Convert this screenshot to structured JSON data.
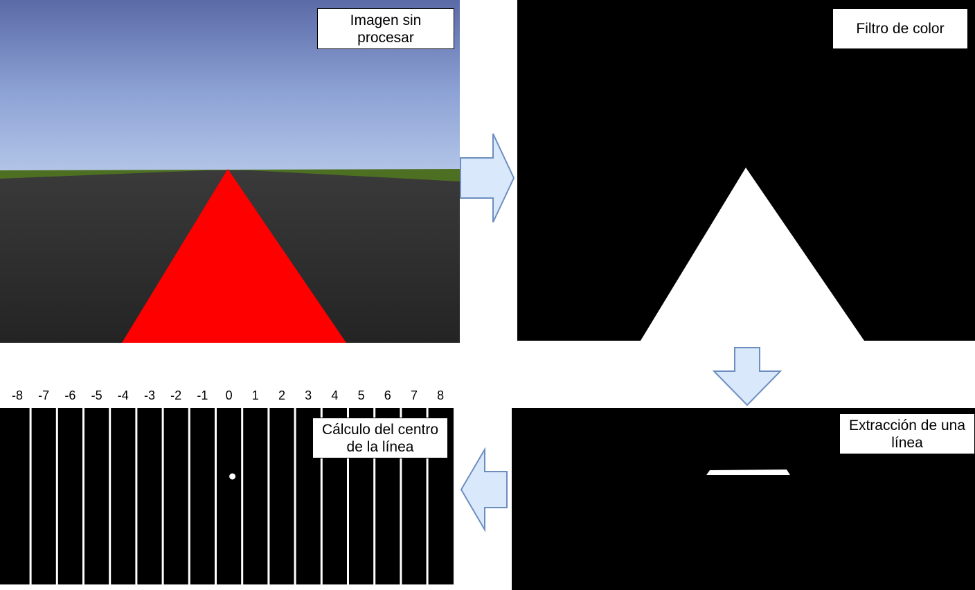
{
  "panels": {
    "raw": {
      "label_line1": "Imagen sin",
      "label_line2": "procesar"
    },
    "filter": {
      "label": "Filtro de color"
    },
    "line": {
      "label_line1": "Extracción de una",
      "label_line2": "línea"
    },
    "center": {
      "label_line1": "Cálculo del centro",
      "label_line2": "de la línea"
    }
  },
  "segment_labels": [
    "-8",
    "-7",
    "-6",
    "-5",
    "-4",
    "-3",
    "-2",
    "-1",
    "0",
    "1",
    "2",
    "3",
    "4",
    "5",
    "6",
    "7",
    "8"
  ],
  "detected_center_segment": "0",
  "colors": {
    "sky_top": "#5c6fa8",
    "sky_bottom": "#a9bde3",
    "grass": "#4a6e1e",
    "road": "#2c2c2c",
    "line_red": "#ff0000",
    "arrow_fill": "#dae8fc",
    "arrow_stroke": "#6c8ebf"
  },
  "arrows": [
    {
      "name": "arrow-right",
      "direction": "right"
    },
    {
      "name": "arrow-down",
      "direction": "down"
    },
    {
      "name": "arrow-left",
      "direction": "left"
    }
  ]
}
